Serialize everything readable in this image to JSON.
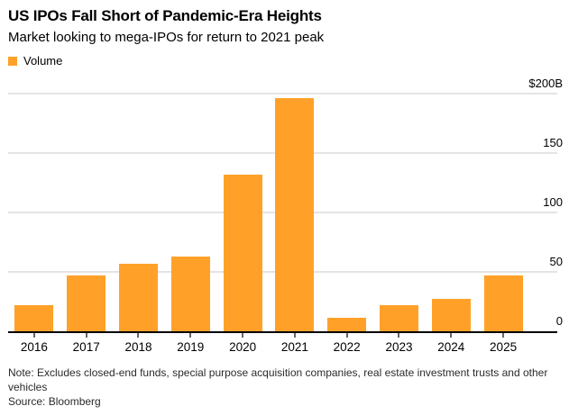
{
  "header": {
    "title": "US IPOs Fall Short of Pandemic-Era Heights",
    "subtitle": "Market looking to mega-IPOs for return to 2021 peak"
  },
  "legend": {
    "items": [
      {
        "label": "Volume",
        "color": "#FFA129"
      }
    ]
  },
  "chart_data": {
    "type": "bar",
    "title": "US IPOs Fall Short of Pandemic-Era Heights",
    "subtitle": "Market looking to mega-IPOs for return to 2021 peak",
    "series_name": "Volume",
    "categories": [
      "2016",
      "2017",
      "2018",
      "2019",
      "2020",
      "2021",
      "2022",
      "2023",
      "2024",
      "2025"
    ],
    "values": [
      22,
      47,
      57,
      63,
      132,
      196,
      11,
      22,
      27,
      47
    ],
    "unit": "USD billions",
    "ylim": [
      0,
      200
    ],
    "yticks": [
      {
        "value": 200,
        "label": "$200B"
      },
      {
        "value": 150,
        "label": "150"
      },
      {
        "value": 100,
        "label": "100"
      },
      {
        "value": 50,
        "label": "50"
      },
      {
        "value": 0,
        "label": "0"
      }
    ],
    "bar_color": "#FFA129",
    "grid": true,
    "gridline_color": "#e4e4e4",
    "axis_side": "right",
    "legend_position": "top-left"
  },
  "footer": {
    "note": "Note: Excludes closed-end funds, special purpose acquisition companies, real estate investment trusts and other vehicles",
    "source": "Source: Bloomberg"
  }
}
